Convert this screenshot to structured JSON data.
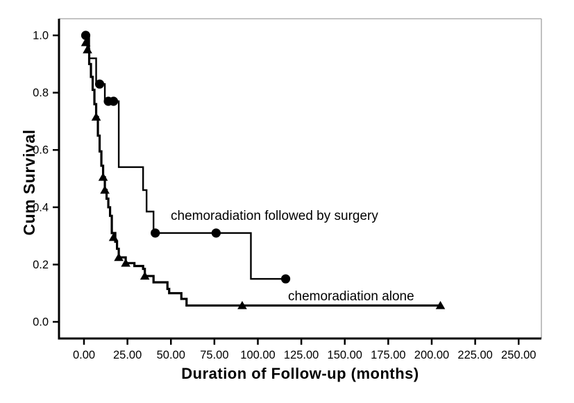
{
  "figure": {
    "background": "#ffffff",
    "frame_color": "#b0b0b0",
    "axis_color": "#000000",
    "curve_color": "#000000"
  },
  "chart_data": {
    "type": "line",
    "subtype": "kaplan-meier-step-survival",
    "title": "",
    "xlabel": "Duration of Follow-up (months)",
    "ylabel": "Cum Survival",
    "xlim": [
      0,
      250
    ],
    "ylim": [
      0.0,
      1.0
    ],
    "grid": false,
    "legend_position": "none",
    "x_ticks": [
      {
        "value": 0,
        "label": "0.00"
      },
      {
        "value": 25,
        "label": "25.00"
      },
      {
        "value": 50,
        "label": "50.00"
      },
      {
        "value": 75,
        "label": "75.00"
      },
      {
        "value": 100,
        "label": "100.00"
      },
      {
        "value": 125,
        "label": "125.00"
      },
      {
        "value": 150,
        "label": "150.00"
      },
      {
        "value": 175,
        "label": "175.00"
      },
      {
        "value": 200,
        "label": "200.00"
      },
      {
        "value": 225,
        "label": "225.00"
      },
      {
        "value": 250,
        "label": "250.00"
      }
    ],
    "y_ticks": [
      {
        "value": 0.0,
        "label": "0.0"
      },
      {
        "value": 0.2,
        "label": "0.2"
      },
      {
        "value": 0.4,
        "label": "0.4"
      },
      {
        "value": 0.6,
        "label": "0.6"
      },
      {
        "value": 0.8,
        "label": "0.8"
      },
      {
        "value": 1.0,
        "label": "1.0"
      }
    ],
    "series": [
      {
        "key": "surgery",
        "name": "chemoradiation followed by surgery",
        "label": "chemoradiation followed by surgery",
        "marker": "circle",
        "line_width": 2.4,
        "start": [
          0,
          1.0
        ],
        "steps": [
          [
            3,
            0.92
          ],
          [
            7,
            0.83
          ],
          [
            12,
            0.77
          ],
          [
            20,
            0.54
          ],
          [
            34,
            0.46
          ],
          [
            36,
            0.385
          ],
          [
            40,
            0.31
          ],
          [
            96,
            0.15
          ]
        ],
        "end_time": 116,
        "censored": [
          [
            1,
            1.0
          ],
          [
            9,
            0.83
          ],
          [
            14,
            0.77
          ],
          [
            17,
            0.77
          ],
          [
            41,
            0.31
          ],
          [
            76,
            0.31
          ],
          [
            116,
            0.15
          ]
        ]
      },
      {
        "key": "alone",
        "name": "chemoradiation alone",
        "label": "chemoradiation alone",
        "marker": "triangle",
        "line_width": 3.2,
        "start": [
          0,
          1.0
        ],
        "steps": [
          [
            2,
            0.95
          ],
          [
            3,
            0.9
          ],
          [
            4,
            0.855
          ],
          [
            5,
            0.81
          ],
          [
            6,
            0.76
          ],
          [
            7,
            0.715
          ],
          [
            8,
            0.65
          ],
          [
            9,
            0.595
          ],
          [
            10,
            0.545
          ],
          [
            11,
            0.505
          ],
          [
            12,
            0.46
          ],
          [
            13,
            0.43
          ],
          [
            14,
            0.4
          ],
          [
            15,
            0.37
          ],
          [
            16,
            0.31
          ],
          [
            18,
            0.28
          ],
          [
            19,
            0.255
          ],
          [
            20,
            0.225
          ],
          [
            24,
            0.205
          ],
          [
            29,
            0.195
          ],
          [
            34,
            0.185
          ],
          [
            35,
            0.16
          ],
          [
            40,
            0.138
          ],
          [
            48,
            0.115
          ],
          [
            49,
            0.1
          ],
          [
            56,
            0.08
          ],
          [
            59,
            0.057
          ]
        ],
        "end_time": 205,
        "censored": [
          [
            1,
            0.975
          ],
          [
            2,
            0.95
          ],
          [
            7,
            0.715
          ],
          [
            11,
            0.505
          ],
          [
            12,
            0.46
          ],
          [
            17,
            0.295
          ],
          [
            20,
            0.225
          ],
          [
            24,
            0.205
          ],
          [
            35,
            0.16
          ],
          [
            91,
            0.057
          ],
          [
            205,
            0.057
          ]
        ]
      }
    ],
    "annotations": [
      {
        "text": "chemoradiation followed by surgery"
      },
      {
        "text": "chemoradiation alone"
      }
    ]
  }
}
